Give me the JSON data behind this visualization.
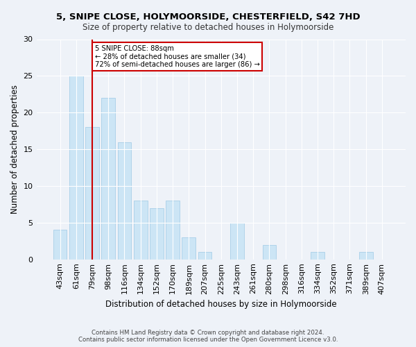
{
  "title": "5, SNIPE CLOSE, HOLYMOORSIDE, CHESTERFIELD, S42 7HD",
  "subtitle": "Size of property relative to detached houses in Holymoorside",
  "xlabel": "Distribution of detached houses by size in Holymoorside",
  "ylabel": "Number of detached properties",
  "categories": [
    "43sqm",
    "61sqm",
    "79sqm",
    "98sqm",
    "116sqm",
    "134sqm",
    "152sqm",
    "170sqm",
    "189sqm",
    "207sqm",
    "225sqm",
    "243sqm",
    "261sqm",
    "280sqm",
    "298sqm",
    "316sqm",
    "334sqm",
    "352sqm",
    "371sqm",
    "389sqm",
    "407sqm"
  ],
  "values": [
    4,
    25,
    18,
    22,
    16,
    8,
    7,
    8,
    3,
    1,
    0,
    5,
    0,
    2,
    0,
    0,
    1,
    0,
    0,
    1,
    0
  ],
  "bar_color": "#cce5f5",
  "bar_edgecolor": "#a8cfe8",
  "redline_index": 2,
  "redline_label": "5 SNIPE CLOSE: 88sqm",
  "annotation_line2": "← 28% of detached houses are smaller (34)",
  "annotation_line3": "72% of semi-detached houses are larger (86) →",
  "annotation_box_color": "#ffffff",
  "annotation_box_edgecolor": "#cc0000",
  "redline_color": "#cc0000",
  "ylim": [
    0,
    30
  ],
  "yticks": [
    0,
    5,
    10,
    15,
    20,
    25,
    30
  ],
  "footer_line1": "Contains HM Land Registry data © Crown copyright and database right 2024.",
  "footer_line2": "Contains public sector information licensed under the Open Government Licence v3.0.",
  "background_color": "#eef2f8",
  "grid_color": "#ffffff"
}
